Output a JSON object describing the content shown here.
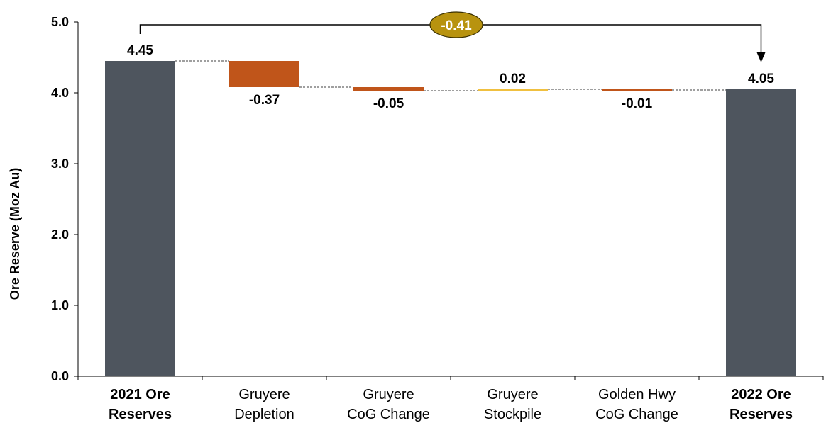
{
  "chart_data": {
    "type": "bar",
    "subtype": "waterfall",
    "title": "",
    "xlabel": "",
    "ylabel": "Ore Reserve (Moz Au)",
    "ylim": [
      0,
      5
    ],
    "yticks": [
      "0.0",
      "1.0",
      "2.0",
      "3.0",
      "4.0",
      "5.0"
    ],
    "categories": [
      {
        "line1": "2021 Ore",
        "line2": "Reserves",
        "bold": true
      },
      {
        "line1": "Gruyere",
        "line2": "Depletion",
        "bold": false
      },
      {
        "line1": "Gruyere",
        "line2": "CoG Change",
        "bold": false
      },
      {
        "line1": "Gruyere",
        "line2": "Stockpile",
        "bold": false
      },
      {
        "line1": "Golden Hwy",
        "line2": "CoG Change",
        "bold": false
      },
      {
        "line1": "2022 Ore",
        "line2": "Reserves",
        "bold": true
      }
    ],
    "bars": [
      {
        "kind": "total",
        "value": 4.45,
        "label": "4.45"
      },
      {
        "kind": "delta",
        "value": -0.37,
        "label": "-0.37"
      },
      {
        "kind": "delta",
        "value": -0.05,
        "label": "-0.05"
      },
      {
        "kind": "delta",
        "value": 0.02,
        "label": "0.02"
      },
      {
        "kind": "delta",
        "value": -0.01,
        "label": "-0.01"
      },
      {
        "kind": "total",
        "value": 4.05,
        "label": "4.05"
      }
    ],
    "net_change": {
      "value": -0.41,
      "label": "-0.41"
    },
    "colors": {
      "total": "#4e555e",
      "decrease": "#c0551a",
      "increase": "#f0c040",
      "badge_fill": "#b8930f",
      "badge_stroke": "#3a3000",
      "connector": "#000000"
    },
    "grid": false,
    "legend": "none"
  }
}
